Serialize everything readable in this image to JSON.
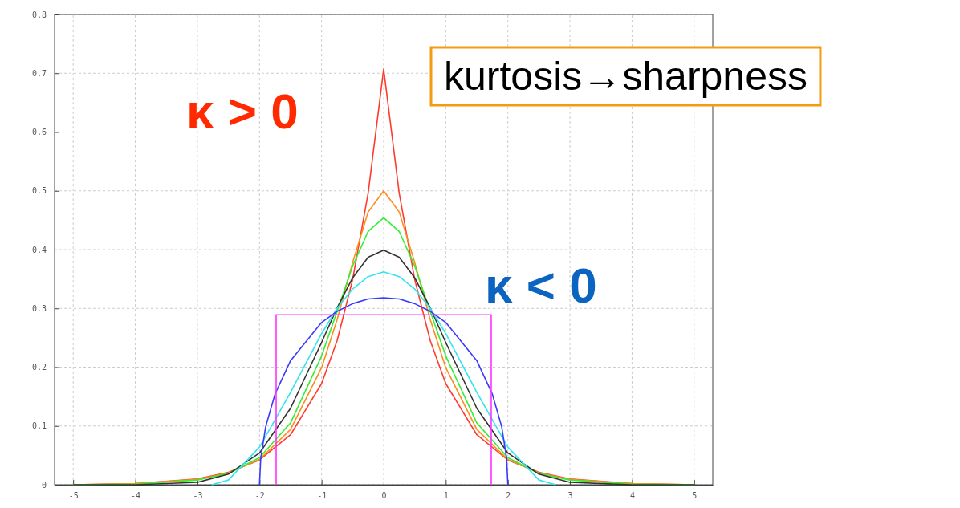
{
  "chart_data": {
    "type": "line",
    "x": [
      -5,
      -4,
      -3,
      -2.5,
      -2,
      -1.5,
      -1,
      -0.75,
      -0.5,
      -0.25,
      0,
      0.25,
      0.5,
      0.75,
      1,
      1.5,
      2,
      2.5,
      3,
      4,
      5
    ],
    "series": [
      {
        "color": "#ff3b2f",
        "values": [
          0,
          0.002,
          0.01,
          0.021,
          0.042,
          0.085,
          0.172,
          0.245,
          0.349,
          0.496,
          0.707,
          0.496,
          0.349,
          0.245,
          0.172,
          0.085,
          0.042,
          0.021,
          0.01,
          0.002,
          0
        ]
      },
      {
        "color": "#ff8c1a",
        "values": [
          0,
          0.002,
          0.009,
          0.02,
          0.043,
          0.094,
          0.199,
          0.281,
          0.378,
          0.464,
          0.5,
          0.464,
          0.378,
          0.281,
          0.199,
          0.094,
          0.043,
          0.02,
          0.009,
          0.002,
          0
        ]
      },
      {
        "color": "#33ee33",
        "values": [
          0,
          0.001,
          0.008,
          0.019,
          0.046,
          0.105,
          0.219,
          0.295,
          0.372,
          0.431,
          0.454,
          0.431,
          0.372,
          0.295,
          0.219,
          0.105,
          0.046,
          0.019,
          0.008,
          0.001,
          0
        ]
      },
      {
        "color": "#333333",
        "values": [
          0,
          0,
          0.004,
          0.018,
          0.054,
          0.13,
          0.242,
          0.301,
          0.352,
          0.387,
          0.399,
          0.387,
          0.352,
          0.301,
          0.242,
          0.13,
          0.054,
          0.018,
          0.004,
          0,
          0
        ]
      },
      {
        "color": "#33e5ee",
        "x": [
          -2.77,
          -2.5,
          -2,
          -1.5,
          -1,
          -0.75,
          -0.5,
          -0.25,
          0,
          0.25,
          0.5,
          0.75,
          1,
          1.5,
          2,
          2.5,
          2.77
        ],
        "values": [
          0,
          0.008,
          0.064,
          0.157,
          0.257,
          0.3,
          0.333,
          0.354,
          0.362,
          0.354,
          0.333,
          0.3,
          0.257,
          0.157,
          0.064,
          0.008,
          0
        ]
      },
      {
        "color": "#3a3aff",
        "x": [
          -2,
          -1.98,
          -1.9,
          -1.75,
          -1.5,
          -1,
          -0.75,
          -0.5,
          -0.25,
          0,
          0.25,
          0.5,
          0.75,
          1,
          1.5,
          1.75,
          1.9,
          1.98,
          2
        ],
        "values": [
          0,
          0.045,
          0.099,
          0.154,
          0.211,
          0.276,
          0.295,
          0.308,
          0.316,
          0.318,
          0.316,
          0.308,
          0.295,
          0.276,
          0.211,
          0.154,
          0.099,
          0.045,
          0
        ]
      },
      {
        "color": "#ff33ff",
        "x": [
          -1.732,
          -1.732,
          1.732,
          1.732
        ],
        "values": [
          0,
          0.289,
          0.289,
          0
        ]
      }
    ],
    "xlim": [
      -5.3,
      5.3
    ],
    "xticks": [
      -5,
      -4,
      -3,
      -2,
      -1,
      0,
      1,
      2,
      3,
      4,
      5
    ],
    "ylim": [
      0,
      0.8
    ],
    "yticks": [
      0,
      0.1,
      0.2,
      0.3,
      0.4,
      0.5,
      0.6,
      0.7,
      0.8
    ],
    "grid": true,
    "line_style": "solid",
    "marker": "none",
    "annotations": [
      "κ > 0",
      "κ < 0",
      "kurtosis→sharpness"
    ]
  }
}
